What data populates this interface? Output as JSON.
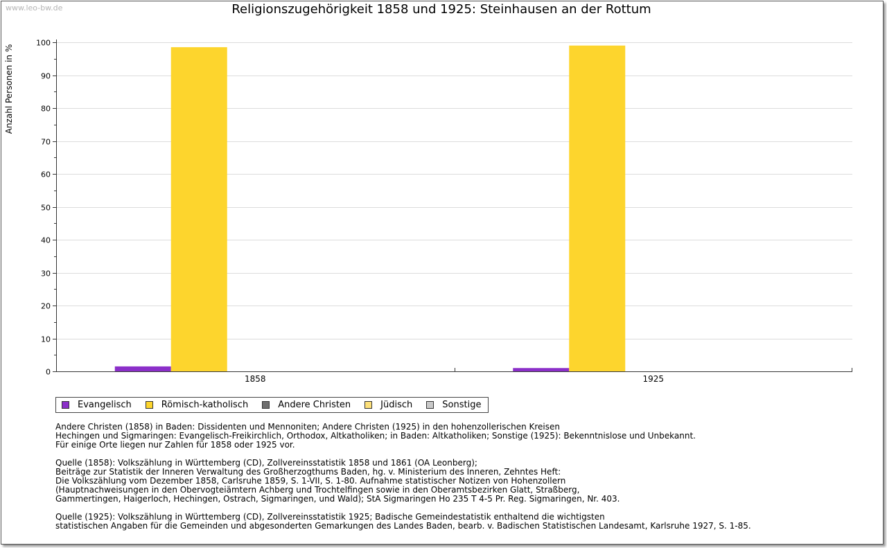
{
  "watermark": "www.leo-bw.de",
  "colors": {
    "evangelisch": "#8b2fc9",
    "katholisch": "#fdd52d",
    "andere": "#6e6e6e",
    "juedisch": "#fde07a",
    "sonstige": "#c8c8c8"
  },
  "chart_data": {
    "type": "bar",
    "title": "Religionszugehörigkeit 1858 und 1925: Steinhausen an der Rottum",
    "xlabel": "",
    "ylabel": "Anzahl Personen in %",
    "categories": [
      "1858",
      "1925"
    ],
    "ylim": [
      0,
      100
    ],
    "yticks": [
      0,
      10,
      20,
      30,
      40,
      50,
      60,
      70,
      80,
      90,
      100
    ],
    "grid": true,
    "legend_position": "bottom",
    "series": [
      {
        "name": "Evangelisch",
        "color": "#8b2fc9",
        "values": [
          1.5,
          1.0
        ]
      },
      {
        "name": "Römisch-katholisch",
        "color": "#fdd52d",
        "values": [
          98.5,
          99.0
        ]
      },
      {
        "name": "Andere Christen",
        "color": "#6e6e6e",
        "values": [
          0,
          0
        ]
      },
      {
        "name": "Jüdisch",
        "color": "#fde07a",
        "values": [
          0,
          0
        ]
      },
      {
        "name": "Sonstige",
        "color": "#c8c8c8",
        "values": [
          0,
          0
        ]
      }
    ]
  },
  "notes": [
    "Andere Christen (1858) in Baden: Dissidenten und Mennoniten; Andere Christen (1925) in den hohenzollerischen Kreisen\nHechingen und Sigmaringen: Evangelisch-Freikirchlich, Orthodox, Altkatholiken; in Baden: Altkatholiken; Sonstige (1925): Bekenntnislose und Unbekannt.\nFür einige Orte liegen nur Zahlen für 1858 oder 1925 vor.",
    "Quelle (1858): Volkszählung in Württemberg (CD), Zollvereinsstatistik 1858 und 1861 (OA Leonberg);\nBeiträge zur Statistik der Inneren Verwaltung des Großherzogthums Baden, hg. v. Ministerium des Inneren, Zehntes Heft:\nDie Volkszählung vom Dezember 1858, Carlsruhe 1859, S. 1-VII, S. 1-80. Aufnahme statistischer Notizen von Hohenzollern\n(Hauptnachweisungen in den Obervogteiämtern Achberg und Trochtelfingen sowie in den Oberamtsbezirken Glatt, Straßberg,\nGammertingen, Haigerloch, Hechingen, Ostrach, Sigmaringen, und Wald); StA Sigmaringen Ho 235 T 4-5 Pr. Reg. Sigmaringen, Nr. 403.",
    "Quelle (1925): Volkszählung in Württemberg (CD), Zollvereinsstatistik 1925; Badische Gemeindestatistik enthaltend die wichtigsten\nstatistischen Angaben für die Gemeinden und abgesonderten Gemarkungen des Landes Baden, bearb. v. Badischen Statistischen Landesamt, Karlsruhe 1927, S. 1-85."
  ]
}
